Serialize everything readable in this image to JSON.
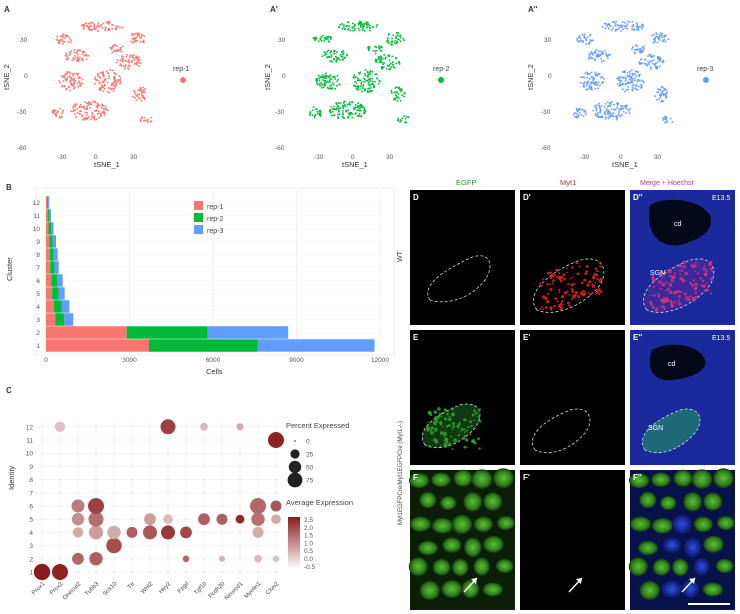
{
  "panel_letters": {
    "A": "A",
    "A1": "A'",
    "A2": "A''",
    "B": "B",
    "C": "C",
    "D": "D",
    "D1": "D'",
    "D2": "D''",
    "E": "E",
    "E1": "E'",
    "E2": "E''",
    "F": "F",
    "F1": "F'",
    "F2": "F''"
  },
  "tsne": {
    "xlabel": "tSNE_1",
    "ylabel": "tSNE_2",
    "xticks": [
      "-30",
      "0",
      "30"
    ],
    "yticks": [
      "30",
      "0",
      "-30",
      "-60"
    ],
    "panels": [
      {
        "rep": "rep-1",
        "color": "#F8766D"
      },
      {
        "rep": "rep-2",
        "color": "#00BA38"
      },
      {
        "rep": "rep-3",
        "color": "#619CFF"
      }
    ]
  },
  "chart_data": [
    {
      "type": "bar",
      "subtype": "stacked-horizontal",
      "xlabel": "Cells",
      "ylabel": "Cluster",
      "categories": [
        "1",
        "2",
        "3",
        "4",
        "5",
        "6",
        "7",
        "8",
        "9",
        "10",
        "11",
        "12"
      ],
      "xticks": [
        "0",
        "3000",
        "6000",
        "9000",
        "12000"
      ],
      "xlim": [
        0,
        12000
      ],
      "legend": "top-right",
      "series": [
        {
          "name": "rep-1",
          "color": "#F8766D",
          "values": [
            3700,
            2900,
            330,
            280,
            220,
            200,
            150,
            140,
            120,
            90,
            60,
            40
          ]
        },
        {
          "name": "rep-2",
          "color": "#00BA38",
          "values": [
            3900,
            2900,
            330,
            290,
            230,
            200,
            160,
            140,
            120,
            90,
            60,
            40
          ]
        },
        {
          "name": "rep-3",
          "color": "#619CFF",
          "values": [
            4200,
            2900,
            320,
            270,
            220,
            200,
            150,
            140,
            120,
            90,
            60,
            40
          ]
        }
      ]
    },
    {
      "type": "scatter",
      "subtype": "dot-plot",
      "xlabel": "",
      "ylabel": "Identity",
      "genes": [
        "Prox1",
        "Prox2",
        "Onecut2",
        "Tubb3",
        "Sox10",
        "Ttr",
        "Wnt2",
        "Hey2",
        "Fzgd",
        "Tgf10",
        "Pcdh20",
        "Neurod1",
        "Myelin1",
        "Clvn2"
      ],
      "identities": [
        "1",
        "2",
        "3",
        "4",
        "5",
        "6",
        "7",
        "8",
        "9",
        "10",
        "11",
        "12"
      ],
      "size_legend_title": "Percent Expressed",
      "size_legend": [
        "0",
        "25",
        "50",
        "75"
      ],
      "color_legend_title": "Average Expression",
      "color_legend": [
        "2.5",
        "2.0",
        "1.5",
        "1.0",
        "0.5",
        "0.0",
        "-0.5"
      ],
      "points": [
        {
          "gene": 0,
          "id": 1,
          "pct": 85,
          "expr": 2.5
        },
        {
          "gene": 1,
          "id": 1,
          "pct": 80,
          "expr": 2.4
        },
        {
          "gene": 1,
          "id": 12,
          "pct": 30,
          "expr": 0.3
        },
        {
          "gene": 2,
          "id": 2,
          "pct": 40,
          "expr": 1.5
        },
        {
          "gene": 2,
          "id": 4,
          "pct": 30,
          "expr": 0.6
        },
        {
          "gene": 2,
          "id": 5,
          "pct": 45,
          "expr": 1.0
        },
        {
          "gene": 2,
          "id": 6,
          "pct": 50,
          "expr": 1.2
        },
        {
          "gene": 3,
          "id": 2,
          "pct": 55,
          "expr": 1.6
        },
        {
          "gene": 3,
          "id": 4,
          "pct": 60,
          "expr": 0.8
        },
        {
          "gene": 3,
          "id": 5,
          "pct": 70,
          "expr": 1.4
        },
        {
          "gene": 3,
          "id": 6,
          "pct": 80,
          "expr": 2.0
        },
        {
          "gene": 4,
          "id": 3,
          "pct": 75,
          "expr": 1.8
        },
        {
          "gene": 4,
          "id": 4,
          "pct": 55,
          "expr": 0.6
        },
        {
          "gene": 5,
          "id": 4,
          "pct": 35,
          "expr": 1.6
        },
        {
          "gene": 6,
          "id": 4,
          "pct": 60,
          "expr": 1.7
        },
        {
          "gene": 6,
          "id": 5,
          "pct": 40,
          "expr": 0.8
        },
        {
          "gene": 7,
          "id": 4,
          "pct": 60,
          "expr": 2.1
        },
        {
          "gene": 7,
          "id": 12,
          "pct": 70,
          "expr": 2.0
        },
        {
          "gene": 7,
          "id": 5,
          "pct": 25,
          "expr": 0.4
        },
        {
          "gene": 8,
          "id": 4,
          "pct": 40,
          "expr": 1.9
        },
        {
          "gene": 8,
          "id": 2,
          "pct": 10,
          "expr": 1.5
        },
        {
          "gene": 9,
          "id": 5,
          "pct": 40,
          "expr": 1.6
        },
        {
          "gene": 9,
          "id": 12,
          "pct": 15,
          "expr": 0.4
        },
        {
          "gene": 10,
          "id": 5,
          "pct": 35,
          "expr": 1.6
        },
        {
          "gene": 10,
          "id": 2,
          "pct": 8,
          "expr": 0.5
        },
        {
          "gene": 11,
          "id": 5,
          "pct": 20,
          "expr": 2.3
        },
        {
          "gene": 11,
          "id": 12,
          "pct": 12,
          "expr": 0.6
        },
        {
          "gene": 12,
          "id": 5,
          "pct": 55,
          "expr": 1.4
        },
        {
          "gene": 12,
          "id": 6,
          "pct": 80,
          "expr": 1.5
        },
        {
          "gene": 12,
          "id": 4,
          "pct": 35,
          "expr": 0.6
        },
        {
          "gene": 12,
          "id": 2,
          "pct": 15,
          "expr": 0.4
        },
        {
          "gene": 13,
          "id": 6,
          "pct": 35,
          "expr": 1.7
        },
        {
          "gene": 13,
          "id": 5,
          "pct": 25,
          "expr": 0.6
        },
        {
          "gene": 13,
          "id": 11,
          "pct": 80,
          "expr": 2.4
        },
        {
          "gene": 13,
          "id": 2,
          "pct": 10,
          "expr": 0.3
        }
      ]
    }
  ],
  "micro": {
    "col_headers": [
      "EGFP",
      "Myt1",
      "Merge + Hoechst"
    ],
    "col_header_colors": [
      "#2c8c2c",
      "#c83030",
      "#b43c8c"
    ],
    "hoechst_color": "#3a4fd6",
    "stage_D": "E13.5",
    "stage_E": "E13.5",
    "row_label_top": "WT",
    "row_label_bottom": "Myt1EGFPCre/Myt1EGFPCre (Myt1-/-)",
    "cd_label": "cd",
    "sgn_label": "SGN"
  }
}
